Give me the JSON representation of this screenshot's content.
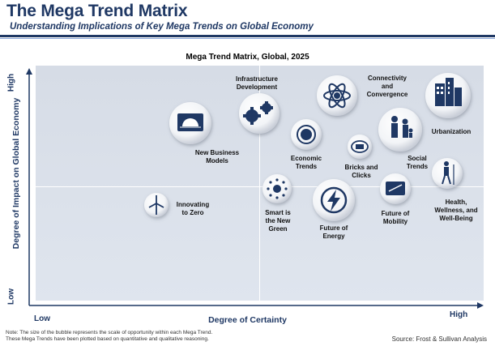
{
  "header": {
    "title": "The Mega Trend Matrix",
    "subtitle": "Understanding Implications of Key Mega Trends on Global Economy"
  },
  "matrix": {
    "title": "Mega Trend Matrix, Global, 2025",
    "y_axis_label": "Degree of Impact on Global Economy",
    "y_high": "High",
    "y_low": "Low",
    "x_axis_label": "Degree of Certainty",
    "x_low": "Low",
    "x_high": "High"
  },
  "trends": [
    {
      "label_lines": [
        "Infrastructure",
        "Development"
      ],
      "icon": "gears-icon"
    },
    {
      "label_lines": [
        "Connectivity",
        "and",
        "Convergence"
      ],
      "icon": "atom-icon"
    },
    {
      "label_lines": [
        "Urbanization"
      ],
      "icon": "buildings-icon"
    },
    {
      "label_lines": [
        "New Business",
        "Models"
      ],
      "icon": "sunrise-icon"
    },
    {
      "label_lines": [
        "Economic",
        "Trends"
      ],
      "icon": "globe-cycle-icon"
    },
    {
      "label_lines": [
        "Bricks and",
        "Clicks"
      ],
      "icon": "cart-icon"
    },
    {
      "label_lines": [
        "Social",
        "Trends"
      ],
      "icon": "family-icon"
    },
    {
      "label_lines": [
        "Innovating",
        "to Zero"
      ],
      "icon": "wind-turbine-icon"
    },
    {
      "label_lines": [
        "Smart is",
        "the New",
        "Green"
      ],
      "icon": "sun-burst-icon"
    },
    {
      "label_lines": [
        "Future of",
        "Energy"
      ],
      "icon": "lightning-icon"
    },
    {
      "label_lines": [
        "Future of",
        "Mobility"
      ],
      "icon": "car-icon"
    },
    {
      "label_lines": [
        "Health,",
        "Wellness, and",
        "Well-Being"
      ],
      "icon": "hiker-icon"
    }
  ],
  "footer": {
    "note_lines": [
      "Note: The size of the bubble represents the scale of opportunity within each Mega Trend.",
      "These Mega Trends have been plotted based on quantitative and qualitative reasoning."
    ],
    "source": "Source: Frost & Sullivan Analysis"
  }
}
